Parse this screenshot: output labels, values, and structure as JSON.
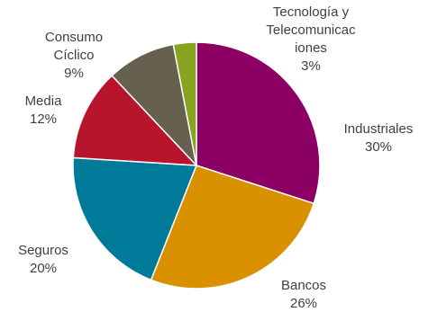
{
  "chart_data": {
    "type": "pie",
    "title": "",
    "slices": [
      {
        "label_lines": [
          "Industriales",
          "30%"
        ],
        "value": 30,
        "color": "#8C0063"
      },
      {
        "label_lines": [
          "Bancos",
          "26%"
        ],
        "value": 26,
        "color": "#D99100"
      },
      {
        "label_lines": [
          "Seguros",
          "20%"
        ],
        "value": 20,
        "color": "#007A99"
      },
      {
        "label_lines": [
          "Media",
          "12%"
        ],
        "value": 12,
        "color": "#B8142E"
      },
      {
        "label_lines": [
          "Consumo",
          "Cíclico",
          "9%"
        ],
        "value": 9,
        "color": "#67604F"
      },
      {
        "label_lines": [
          "Tecnología y",
          "Telecomunicac",
          "iones",
          "3%"
        ],
        "value": 3,
        "color": "#88A31E"
      }
    ]
  }
}
